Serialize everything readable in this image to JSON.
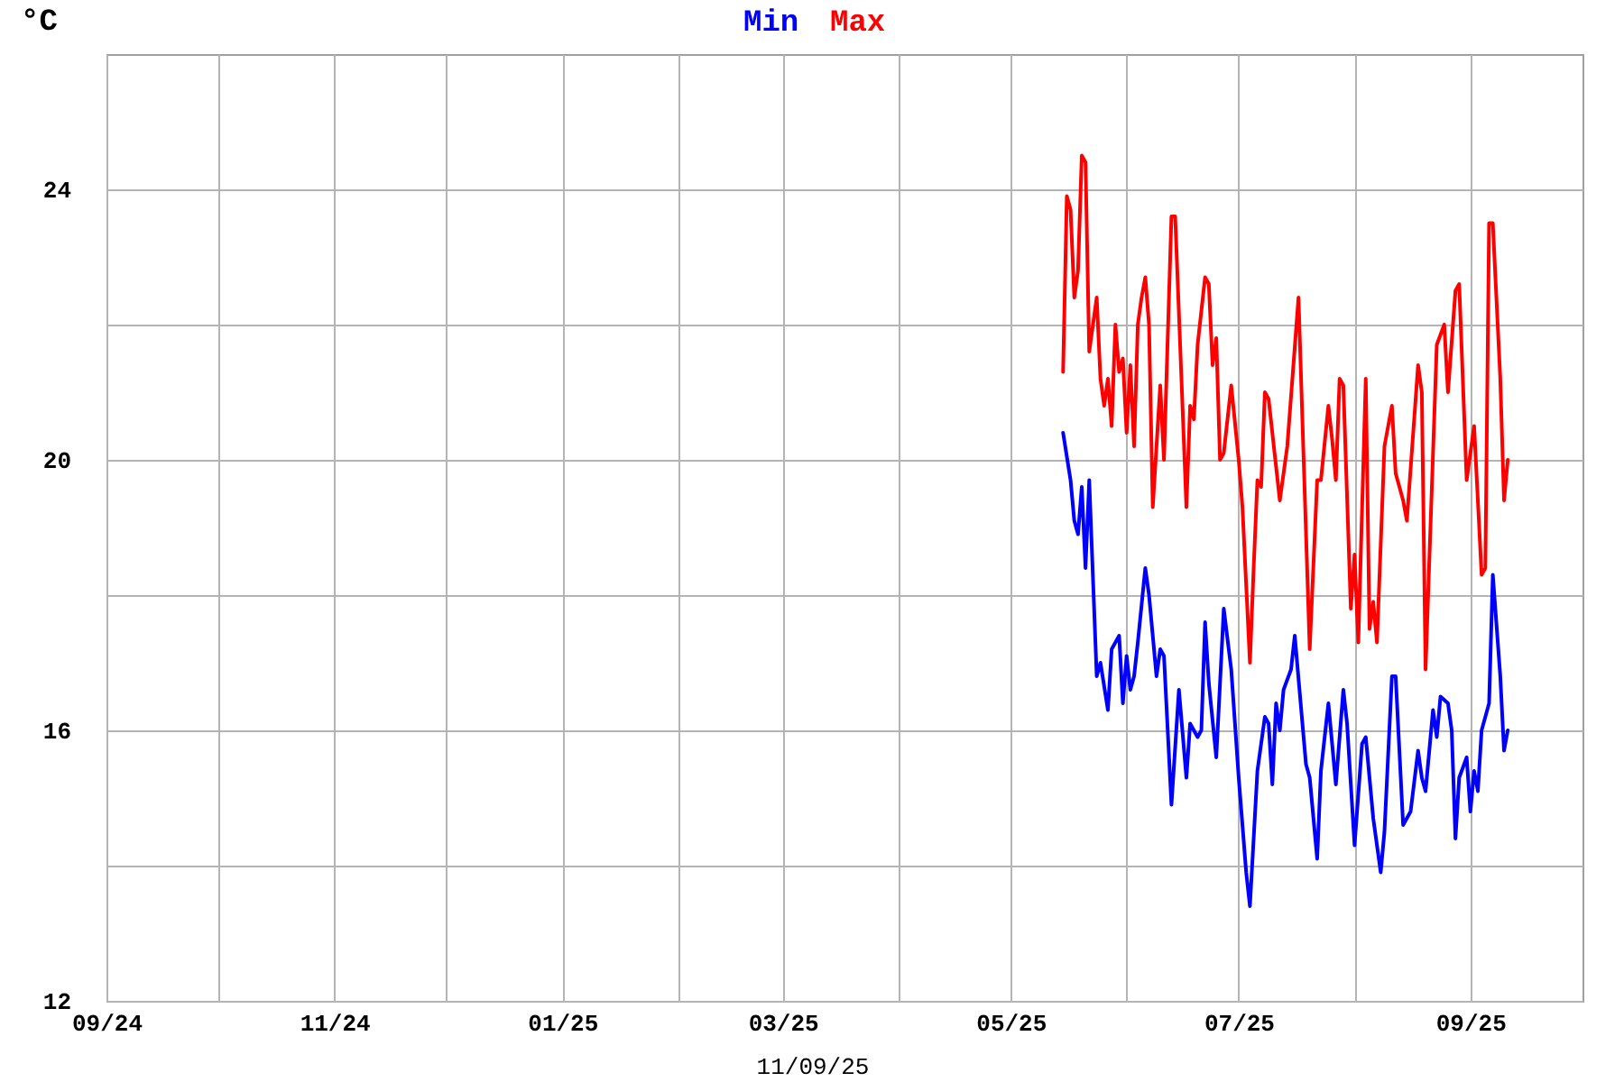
{
  "chart_data": {
    "type": "line",
    "title": null,
    "xlabel": "11/09/25",
    "ylabel": "°C",
    "xlim": [
      "2024-09-01",
      "2025-10-01"
    ],
    "xticks": [
      {
        "value": "2024-09-01",
        "label": "09/24"
      },
      {
        "value": "2024-10-01",
        "label": null
      },
      {
        "value": "2024-11-01",
        "label": "11/24"
      },
      {
        "value": "2024-12-01",
        "label": null
      },
      {
        "value": "2025-01-01",
        "label": "01/25"
      },
      {
        "value": "2025-02-01",
        "label": null
      },
      {
        "value": "2025-03-01",
        "label": "03/25"
      },
      {
        "value": "2025-04-01",
        "label": null
      },
      {
        "value": "2025-05-01",
        "label": "05/25"
      },
      {
        "value": "2025-06-01",
        "label": null
      },
      {
        "value": "2025-07-01",
        "label": "07/25"
      },
      {
        "value": "2025-08-01",
        "label": null
      },
      {
        "value": "2025-09-01",
        "label": "09/25"
      }
    ],
    "ylim": [
      12,
      26
    ],
    "yticks": [
      12,
      {
        "value": 14,
        "label": null
      },
      16,
      {
        "value": 18,
        "label": null
      },
      20,
      {
        "value": 22,
        "label": null
      },
      24
    ],
    "grid": true,
    "legend": "top",
    "series": [
      {
        "name": "Min",
        "color": "#0000ff",
        "x": [
          "2025-05-15",
          "2025-05-17",
          "2025-05-18",
          "2025-05-19",
          "2025-05-20",
          "2025-05-21",
          "2025-05-22",
          "2025-05-24",
          "2025-05-25",
          "2025-05-27",
          "2025-05-28",
          "2025-05-29",
          "2025-05-30",
          "2025-05-31",
          "2025-06-01",
          "2025-06-02",
          "2025-06-03",
          "2025-06-04",
          "2025-06-06",
          "2025-06-07",
          "2025-06-09",
          "2025-06-10",
          "2025-06-11",
          "2025-06-13",
          "2025-06-15",
          "2025-06-17",
          "2025-06-18",
          "2025-06-20",
          "2025-06-21",
          "2025-06-22",
          "2025-06-23",
          "2025-06-25",
          "2025-06-27",
          "2025-06-29",
          "2025-07-01",
          "2025-07-03",
          "2025-07-04",
          "2025-07-06",
          "2025-07-08",
          "2025-07-09",
          "2025-07-10",
          "2025-07-11",
          "2025-07-12",
          "2025-07-13",
          "2025-07-15",
          "2025-07-16",
          "2025-07-19",
          "2025-07-20",
          "2025-07-22",
          "2025-07-23",
          "2025-07-25",
          "2025-07-27",
          "2025-07-29",
          "2025-07-30",
          "2025-08-01",
          "2025-08-03",
          "2025-08-04",
          "2025-08-06",
          "2025-08-08",
          "2025-08-09",
          "2025-08-11",
          "2025-08-12",
          "2025-08-14",
          "2025-08-16",
          "2025-08-18",
          "2025-08-19",
          "2025-08-20",
          "2025-08-22",
          "2025-08-23",
          "2025-08-24",
          "2025-08-26",
          "2025-08-27",
          "2025-08-28",
          "2025-08-29",
          "2025-08-31",
          "2025-09-01",
          "2025-09-02",
          "2025-09-03",
          "2025-09-04",
          "2025-09-06",
          "2025-09-07",
          "2025-09-09",
          "2025-09-10",
          "2025-09-11"
        ],
        "values": [
          20.4,
          19.7,
          19.1,
          18.9,
          19.6,
          18.4,
          19.7,
          16.8,
          17.0,
          16.3,
          17.2,
          17.3,
          17.4,
          16.4,
          17.1,
          16.6,
          16.8,
          17.3,
          18.4,
          18.0,
          16.8,
          17.2,
          17.1,
          14.9,
          16.6,
          15.3,
          16.1,
          15.9,
          16.0,
          17.6,
          16.7,
          15.6,
          17.8,
          16.9,
          15.3,
          13.9,
          13.4,
          15.4,
          16.2,
          16.1,
          15.2,
          16.4,
          16.0,
          16.6,
          16.9,
          17.4,
          15.5,
          15.3,
          14.1,
          15.4,
          16.4,
          15.2,
          16.6,
          16.1,
          14.3,
          15.8,
          15.9,
          14.7,
          13.9,
          14.5,
          16.8,
          16.8,
          14.6,
          14.8,
          15.7,
          15.3,
          15.1,
          16.3,
          15.9,
          16.5,
          16.4,
          16.0,
          14.4,
          15.3,
          15.6,
          14.8,
          15.4,
          15.1,
          16.0,
          16.4,
          18.3,
          16.8,
          15.7,
          16.0
        ]
      },
      {
        "name": "Max",
        "color": "#ff0000",
        "x": [
          "2025-05-15",
          "2025-05-16",
          "2025-05-17",
          "2025-05-18",
          "2025-05-19",
          "2025-05-20",
          "2025-05-21",
          "2025-05-22",
          "2025-05-23",
          "2025-05-24",
          "2025-05-25",
          "2025-05-26",
          "2025-05-27",
          "2025-05-28",
          "2025-05-29",
          "2025-05-30",
          "2025-05-31",
          "2025-06-01",
          "2025-06-02",
          "2025-06-03",
          "2025-06-04",
          "2025-06-05",
          "2025-06-06",
          "2025-06-07",
          "2025-06-08",
          "2025-06-10",
          "2025-06-11",
          "2025-06-13",
          "2025-06-14",
          "2025-06-17",
          "2025-06-18",
          "2025-06-19",
          "2025-06-20",
          "2025-06-22",
          "2025-06-23",
          "2025-06-24",
          "2025-06-25",
          "2025-06-26",
          "2025-06-27",
          "2025-06-29",
          "2025-07-01",
          "2025-07-02",
          "2025-07-04",
          "2025-07-05",
          "2025-07-06",
          "2025-07-07",
          "2025-07-08",
          "2025-07-09",
          "2025-07-12",
          "2025-07-14",
          "2025-07-17",
          "2025-07-20",
          "2025-07-22",
          "2025-07-23",
          "2025-07-25",
          "2025-07-26",
          "2025-07-27",
          "2025-07-28",
          "2025-07-29",
          "2025-07-31",
          "2025-08-01",
          "2025-08-02",
          "2025-08-04",
          "2025-08-05",
          "2025-08-06",
          "2025-08-07",
          "2025-08-09",
          "2025-08-11",
          "2025-08-12",
          "2025-08-14",
          "2025-08-15",
          "2025-08-18",
          "2025-08-19",
          "2025-08-20",
          "2025-08-23",
          "2025-08-25",
          "2025-08-26",
          "2025-08-28",
          "2025-08-29",
          "2025-08-31",
          "2025-09-02",
          "2025-09-04",
          "2025-09-05",
          "2025-09-06",
          "2025-09-07",
          "2025-09-09",
          "2025-09-10",
          "2025-09-11"
        ],
        "values": [
          21.3,
          23.9,
          23.7,
          22.4,
          22.8,
          24.5,
          24.4,
          21.6,
          22.0,
          22.4,
          21.2,
          20.8,
          21.2,
          20.5,
          22.0,
          21.3,
          21.5,
          20.4,
          21.4,
          20.2,
          22.0,
          22.4,
          22.7,
          22.0,
          19.3,
          21.1,
          20.0,
          23.6,
          23.6,
          19.3,
          20.8,
          20.6,
          21.7,
          22.7,
          22.6,
          21.4,
          21.8,
          20.0,
          20.1,
          21.1,
          20.0,
          19.3,
          17.0,
          18.4,
          19.7,
          19.6,
          21.0,
          20.9,
          19.4,
          20.2,
          22.4,
          17.2,
          19.7,
          19.7,
          20.8,
          20.3,
          19.7,
          21.2,
          21.1,
          17.8,
          18.6,
          17.3,
          21.2,
          17.5,
          17.9,
          17.3,
          20.2,
          20.8,
          19.8,
          19.4,
          19.1,
          21.4,
          21.0,
          16.9,
          21.7,
          22.0,
          21.0,
          22.5,
          22.6,
          19.7,
          20.5,
          18.3,
          18.4,
          23.5,
          23.5,
          21.2,
          19.4,
          20.0
        ]
      }
    ]
  }
}
